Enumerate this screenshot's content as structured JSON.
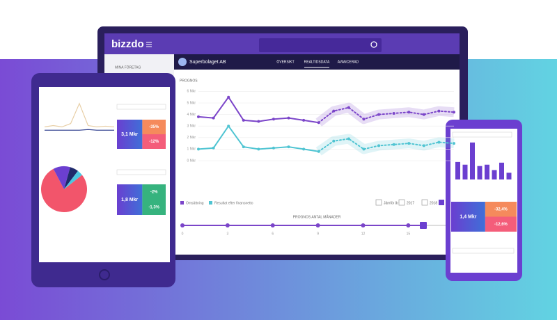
{
  "app": {
    "logo": "bizzdo",
    "sidebar_title": "MINA FÖRETAG",
    "company": "Superbolaget AB",
    "tabs": [
      "ÖVERSIKT",
      "REALTIDSDATA",
      "AVANCERAD"
    ],
    "active_tab": 1
  },
  "main_chart": {
    "type": "line",
    "title": "PROGNOS",
    "x": [
      0,
      1,
      2,
      3,
      4,
      5,
      6,
      7,
      8,
      9,
      10,
      11,
      12,
      13,
      14,
      15,
      16,
      17
    ],
    "xlim": [
      0,
      17
    ],
    "forecast_start": 8,
    "ylim": [
      0,
      6
    ],
    "yticks": [
      {
        "value": 0,
        "label": "0 Mkr"
      },
      {
        "value": 1,
        "label": "1 Mkr"
      },
      {
        "value": 2,
        "label": "2 Mkr"
      },
      {
        "value": 3,
        "label": "3 Mkr"
      },
      {
        "value": 4,
        "label": "4 Mkr"
      },
      {
        "value": 5,
        "label": "5 Mkr"
      },
      {
        "value": 6,
        "label": "6 Mkr"
      }
    ],
    "grid": true,
    "series": [
      {
        "name": "Omsättning",
        "color": "#7b45c9",
        "values": [
          3.8,
          3.7,
          5.5,
          3.5,
          3.4,
          3.6,
          3.7,
          3.5,
          3.3,
          4.3,
          4.6,
          3.6,
          4.0,
          4.1,
          4.2,
          4.0,
          4.3,
          4.2
        ]
      },
      {
        "name": "Resultat efter finansnetto",
        "color": "#4fc4d2",
        "values": [
          1.0,
          1.1,
          3.0,
          1.2,
          1.0,
          1.1,
          1.2,
          1.0,
          0.8,
          1.7,
          1.9,
          1.0,
          1.3,
          1.4,
          1.5,
          1.3,
          1.6,
          1.5
        ]
      }
    ],
    "compare": [
      "Jämför år",
      "2017",
      "2018"
    ],
    "slider": {
      "label": "PROGNOS ANTAL MÅNADER",
      "ticks": [
        0,
        3,
        6,
        9,
        12,
        15
      ],
      "range": [
        0,
        16
      ],
      "value": 16
    }
  },
  "tablet": {
    "line": {
      "ylim": [
        0,
        5
      ],
      "series": [
        {
          "color": "#e8cfa6",
          "values": [
            1,
            1.2,
            1,
            1.5,
            4.5,
            1.2,
            1,
            1.1,
            1
          ]
        },
        {
          "color": "#2a3a8c",
          "values": [
            0.5,
            0.5,
            0.5,
            0.5,
            0.5,
            0.6,
            0.5,
            0.5,
            0.5
          ]
        }
      ]
    },
    "pie": {
      "values": [
        78,
        12,
        6,
        4
      ],
      "colors": [
        "#f2556b",
        "#6b3fd0",
        "#1f2a6b",
        "#4cc7e0"
      ]
    },
    "kpis": [
      {
        "value": "3,1 Mkr",
        "a": "-35%",
        "b": "-12%"
      },
      {
        "value": "1,8 Mkr",
        "a": "-2%",
        "b": "-1,3%"
      }
    ]
  },
  "phone": {
    "bars": {
      "ylim": [
        0,
        6
      ],
      "color": "#6b3fd0",
      "values": [
        2.6,
        2.2,
        5.5,
        2.0,
        2.2,
        1.4,
        2.5,
        1.0
      ]
    },
    "kpi": {
      "value": "1,4 Mkr",
      "a": "-32,4%",
      "b": "-12,6%"
    }
  }
}
